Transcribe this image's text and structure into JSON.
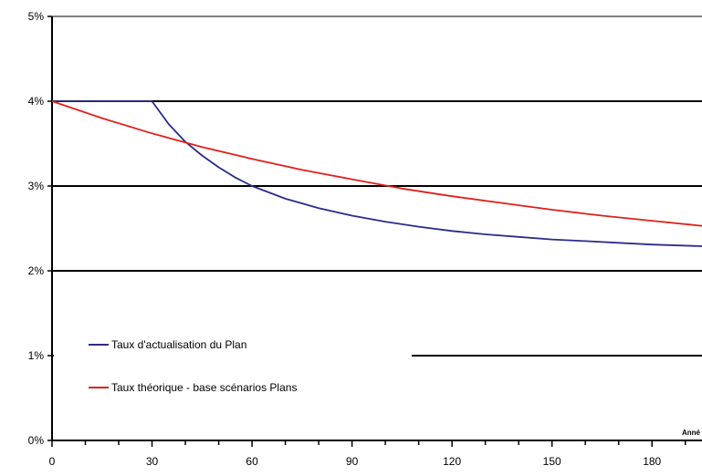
{
  "chart_data": {
    "type": "line",
    "title": "",
    "xlabel": "Anné",
    "ylabel": "",
    "xlim": [
      0,
      195
    ],
    "ylim": [
      0,
      5
    ],
    "x_ticks": [
      0,
      30,
      60,
      90,
      120,
      150,
      180
    ],
    "x_tick_labels": [
      "0",
      "30",
      "60",
      "90",
      "120",
      "150",
      "180"
    ],
    "y_ticks": [
      0,
      1,
      2,
      3,
      4,
      5
    ],
    "y_tick_labels": [
      "0%",
      "1%",
      "2%",
      "3%",
      "4%",
      "5%"
    ],
    "grid": "horizontal",
    "legend_position": "bottom-left",
    "series": [
      {
        "name": "Taux d'actualisation du Plan",
        "color": "#2b2b8c",
        "x": [
          0,
          10,
          20,
          30,
          35,
          40,
          45,
          50,
          55,
          60,
          70,
          80,
          90,
          100,
          110,
          120,
          130,
          140,
          150,
          160,
          170,
          180,
          195
        ],
        "y": [
          4.0,
          4.0,
          4.0,
          4.0,
          3.73,
          3.52,
          3.36,
          3.22,
          3.1,
          3.0,
          2.85,
          2.74,
          2.65,
          2.58,
          2.52,
          2.47,
          2.43,
          2.4,
          2.37,
          2.35,
          2.33,
          2.31,
          2.29
        ]
      },
      {
        "name": "Taux théorique - base scénarios Plans",
        "color": "#e0201b",
        "x": [
          0,
          15,
          30,
          45,
          60,
          75,
          90,
          105,
          120,
          135,
          150,
          165,
          180,
          195
        ],
        "y": [
          4.0,
          3.8,
          3.62,
          3.46,
          3.32,
          3.19,
          3.08,
          2.97,
          2.88,
          2.8,
          2.72,
          2.65,
          2.59,
          2.53
        ]
      }
    ]
  }
}
